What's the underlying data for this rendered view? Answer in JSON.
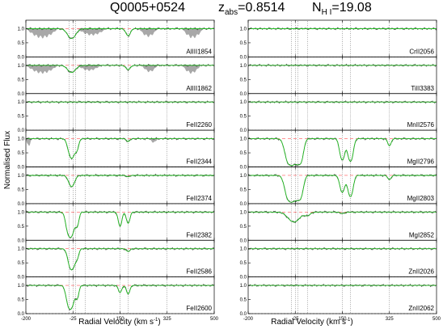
{
  "header": {
    "quasar": "Q0005+0524",
    "z_symbol": "z",
    "z_sub": "abs",
    "z_value": "=0.8514",
    "n_symbol": "N",
    "n_sub": "H I",
    "n_value": "=19.08"
  },
  "axes": {
    "xlabel_left": "Radial Velocity (km s",
    "xlabel_right": "Radial Velocity (km s",
    "xlabel_exp": "-1",
    "xlabel_close": ")",
    "ylabel": "Normalised Flux"
  },
  "colors": {
    "data_line": "#4a4a4a",
    "fit_line": "#22bb22",
    "continuum": "#ff5555",
    "shade": "#a8a8a8",
    "frame": "#000000"
  },
  "chart_data": {
    "type": "line",
    "xlim": [
      -200,
      500
    ],
    "ylim": [
      0,
      1.3
    ],
    "x_ticks": [
      -200,
      -25,
      150,
      325,
      500
    ],
    "y_ticks": [
      0.0,
      0.5,
      1.0
    ],
    "component_velocities": [
      -40,
      -25,
      -15,
      20,
      150,
      180,
      325
    ],
    "panels_left": [
      {
        "label": "AlIII1854",
        "lines": [
          {
            "v": -30,
            "depth": 0.35,
            "width": 14
          },
          {
            "v": 180,
            "depth": 0.25,
            "width": 8
          }
        ],
        "shaded": [
          [
            -200,
            -80,
            0.35
          ],
          [
            -10,
            100,
            0.25
          ],
          [
            220,
            290,
            0.3
          ],
          [
            380,
            460,
            0.35
          ]
        ]
      },
      {
        "label": "AlIII1862",
        "lines": [
          {
            "v": -30,
            "depth": 0.25,
            "width": 14
          },
          {
            "v": 180,
            "depth": 0.15,
            "width": 8
          }
        ],
        "shaded": [
          [
            -200,
            -80,
            0.3
          ],
          [
            -10,
            80,
            0.2
          ],
          [
            230,
            290,
            0.25
          ],
          [
            380,
            450,
            0.3
          ]
        ]
      },
      {
        "label": "FeII2260",
        "lines": [],
        "shaded": []
      },
      {
        "label": "FeII2344",
        "lines": [
          {
            "v": -30,
            "depth": 0.7,
            "width": 10
          },
          {
            "v": -10,
            "depth": 0.35,
            "width": 6
          },
          {
            "v": 180,
            "depth": 0.1,
            "width": 6
          }
        ],
        "shaded": [
          [
            -200,
            -180,
            0.3
          ],
          [
            260,
            290,
            0.15
          ]
        ]
      },
      {
        "label": "FeII2374",
        "lines": [
          {
            "v": -30,
            "depth": 0.4,
            "width": 10
          },
          {
            "v": 180,
            "depth": 0.05,
            "width": 6
          }
        ],
        "shaded": []
      },
      {
        "label": "FeII2382",
        "lines": [
          {
            "v": -35,
            "depth": 0.9,
            "width": 10
          },
          {
            "v": -10,
            "depth": 0.5,
            "width": 6
          },
          {
            "v": 150,
            "depth": 0.5,
            "width": 6
          },
          {
            "v": 180,
            "depth": 0.4,
            "width": 6
          }
        ],
        "shaded": []
      },
      {
        "label": "FeII2586",
        "lines": [
          {
            "v": -30,
            "depth": 0.75,
            "width": 10
          },
          {
            "v": -10,
            "depth": 0.3,
            "width": 6
          },
          {
            "v": 180,
            "depth": 0.1,
            "width": 6
          }
        ],
        "shaded": []
      },
      {
        "label": "FeII2600",
        "lines": [
          {
            "v": -35,
            "depth": 0.85,
            "width": 10
          },
          {
            "v": -10,
            "depth": 0.45,
            "width": 6
          },
          {
            "v": 150,
            "depth": 0.25,
            "width": 6
          },
          {
            "v": 180,
            "depth": 0.3,
            "width": 6
          }
        ],
        "shaded": []
      }
    ],
    "panels_right": [
      {
        "label": "CrII2056",
        "lines": [],
        "shaded": []
      },
      {
        "label": "TiII3383",
        "lines": [],
        "shaded": []
      },
      {
        "label": "MnII2576",
        "lines": [],
        "shaded": []
      },
      {
        "label": "MgII2796",
        "lines": [
          {
            "v": -40,
            "depth": 0.95,
            "width": 14
          },
          {
            "v": -10,
            "depth": 0.9,
            "width": 10
          },
          {
            "v": 150,
            "depth": 0.75,
            "width": 8
          },
          {
            "v": 180,
            "depth": 0.8,
            "width": 8
          },
          {
            "v": 325,
            "depth": 0.25,
            "width": 6
          }
        ],
        "shaded": []
      },
      {
        "label": "MgII2803",
        "lines": [
          {
            "v": -40,
            "depth": 0.95,
            "width": 14
          },
          {
            "v": -10,
            "depth": 0.85,
            "width": 10
          },
          {
            "v": 150,
            "depth": 0.6,
            "width": 8
          },
          {
            "v": 180,
            "depth": 0.75,
            "width": 8
          },
          {
            "v": 325,
            "depth": 0.15,
            "width": 6
          }
        ],
        "shaded": []
      },
      {
        "label": "MgI2852",
        "lines": [
          {
            "v": -30,
            "depth": 0.35,
            "width": 20
          },
          {
            "v": 20,
            "depth": 0.12,
            "width": 10
          },
          {
            "v": 150,
            "depth": 0.05,
            "width": 8
          }
        ],
        "shaded": []
      },
      {
        "label": "ZnII2026",
        "lines": [],
        "shaded": []
      },
      {
        "label": "ZnII2062",
        "lines": [],
        "shaded": []
      }
    ]
  }
}
